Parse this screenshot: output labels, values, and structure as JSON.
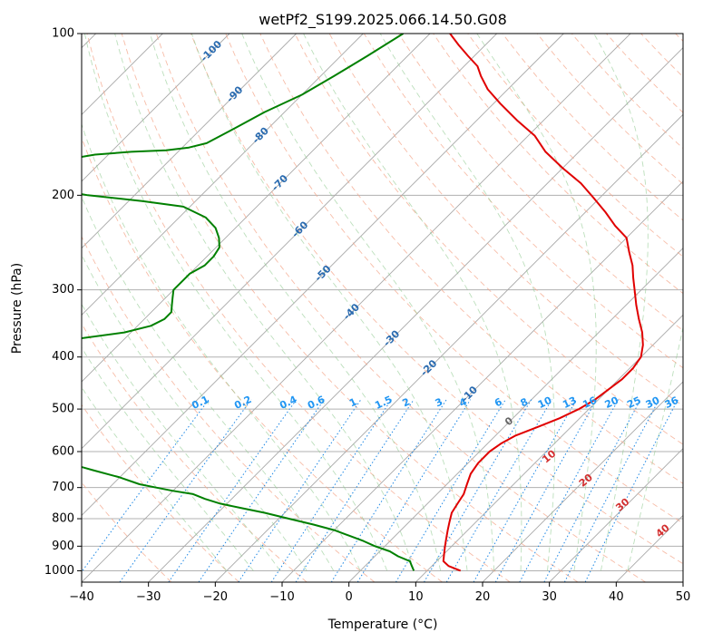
{
  "chart_data": {
    "type": "line",
    "title": "wetPf2_S199.2025.066.14.50.G08",
    "xlabel": "Temperature (°C)",
    "ylabel": "Pressure (hPa)",
    "xlim": [
      -40,
      50
    ],
    "ylim": [
      1050,
      100
    ],
    "y_scale": "log",
    "x_ticks": [
      "−40",
      "−30",
      "−20",
      "−10",
      "0",
      "10",
      "20",
      "30",
      "40",
      "50"
    ],
    "y_ticks": [
      "100",
      "200",
      "300",
      "400",
      "500",
      "600",
      "700",
      "800",
      "900",
      "1000"
    ],
    "grid": true,
    "skew_degrees": 45,
    "series": [
      {
        "color": "#e00000",
        "points": [
          [
            15,
            1000
          ],
          [
            12.5,
            980
          ],
          [
            11,
            960
          ],
          [
            10,
            930
          ],
          [
            9,
            900
          ],
          [
            8,
            870
          ],
          [
            7,
            840
          ],
          [
            6,
            810
          ],
          [
            5,
            780
          ],
          [
            4.5,
            750
          ],
          [
            4,
            720
          ],
          [
            3,
            690
          ],
          [
            2,
            660
          ],
          [
            1.5,
            630
          ],
          [
            1.5,
            600
          ],
          [
            2,
            580
          ],
          [
            3,
            560
          ],
          [
            5,
            540
          ],
          [
            7,
            520
          ],
          [
            8.5,
            500
          ],
          [
            9.5,
            480
          ],
          [
            10,
            460
          ],
          [
            10.5,
            440
          ],
          [
            10.5,
            420
          ],
          [
            10,
            400
          ],
          [
            8.5,
            380
          ],
          [
            6.5,
            360
          ],
          [
            4,
            340
          ],
          [
            1.5,
            320
          ],
          [
            -1,
            300
          ],
          [
            -3,
            285
          ],
          [
            -5,
            270
          ],
          [
            -7.5,
            255
          ],
          [
            -10,
            240
          ],
          [
            -13.5,
            228
          ],
          [
            -17,
            215
          ],
          [
            -21,
            202
          ],
          [
            -25,
            190
          ],
          [
            -30,
            178
          ],
          [
            -35,
            166
          ],
          [
            -39,
            155
          ],
          [
            -44,
            145
          ],
          [
            -49,
            135
          ],
          [
            -53,
            127
          ],
          [
            -56,
            120
          ],
          [
            -58,
            115
          ],
          [
            -61,
            110
          ],
          [
            -64,
            105
          ],
          [
            -67,
            100
          ]
        ]
      },
      {
        "color": "#008000",
        "points": [
          [
            8,
            1000
          ],
          [
            7,
            980
          ],
          [
            6,
            960
          ],
          [
            3.5,
            940
          ],
          [
            1.5,
            920
          ],
          [
            -1.5,
            900
          ],
          [
            -4,
            880
          ],
          [
            -7,
            860
          ],
          [
            -10,
            840
          ],
          [
            -14,
            820
          ],
          [
            -18.5,
            800
          ],
          [
            -23,
            780
          ],
          [
            -27,
            765
          ],
          [
            -31,
            750
          ],
          [
            -34,
            735
          ],
          [
            -36.5,
            720
          ],
          [
            -40,
            710
          ],
          [
            -43,
            700
          ],
          [
            -46,
            690
          ],
          [
            -50,
            670
          ],
          [
            -55,
            650
          ],
          [
            -60,
            630
          ],
          [
            -66,
            610
          ],
          [
            -72,
            590
          ],
          [
            -78,
            575
          ],
          [
            -80,
            560
          ],
          [
            -79,
            550
          ],
          [
            -77,
            540
          ],
          [
            -79,
            530
          ],
          [
            -84,
            520
          ],
          [
            -92,
            510
          ],
          [
            -105,
            500
          ],
          [
            -125,
            490
          ],
          [
            -140,
            480
          ],
          [
            -150,
            475
          ],
          [
            -120,
            465
          ],
          [
            -115,
            460
          ],
          [
            -122,
            455
          ],
          [
            -135,
            445
          ],
          [
            -150,
            430
          ],
          [
            -135,
            420
          ],
          [
            -120,
            410
          ],
          [
            -102,
            400
          ],
          [
            -92,
            390
          ],
          [
            -84,
            380
          ],
          [
            -77,
            370
          ],
          [
            -71,
            360
          ],
          [
            -68,
            350
          ],
          [
            -67,
            340
          ],
          [
            -67,
            330
          ],
          [
            -68,
            320
          ],
          [
            -69,
            310
          ],
          [
            -70,
            300
          ],
          [
            -70,
            290
          ],
          [
            -70,
            280
          ],
          [
            -69,
            270
          ],
          [
            -69,
            260
          ],
          [
            -69.5,
            250
          ],
          [
            -71,
            240
          ],
          [
            -73,
            230
          ],
          [
            -76,
            220
          ],
          [
            -81,
            210
          ],
          [
            -88,
            205
          ],
          [
            -97,
            200
          ],
          [
            -103,
            195
          ],
          [
            -104,
            190
          ],
          [
            -104,
            185
          ],
          [
            -104,
            180
          ],
          [
            -104,
            175
          ],
          [
            -104,
            170
          ],
          [
            -102,
            168
          ],
          [
            -97,
            166
          ],
          [
            -92,
            165
          ],
          [
            -89,
            163
          ],
          [
            -87,
            160
          ],
          [
            -85,
            150
          ],
          [
            -83,
            140
          ],
          [
            -80,
            130
          ],
          [
            -78,
            120
          ],
          [
            -76,
            110
          ],
          [
            -74,
            100
          ]
        ]
      }
    ],
    "mixing_ratio_labels": [
      "0.1",
      "0.2",
      "0.4",
      "0.6",
      "1",
      "1.5",
      "2",
      "3",
      "4",
      "6",
      "8",
      "10",
      "13",
      "16",
      "20",
      "25",
      "30",
      "36"
    ],
    "isotherm_labels": [
      "-100",
      "-90",
      "-80",
      "-70",
      "-60",
      "-50",
      "-40",
      "-30",
      "-20",
      "-10"
    ],
    "dry_adiabat_labels": [
      "0",
      "10",
      "20",
      "30",
      "40"
    ]
  }
}
